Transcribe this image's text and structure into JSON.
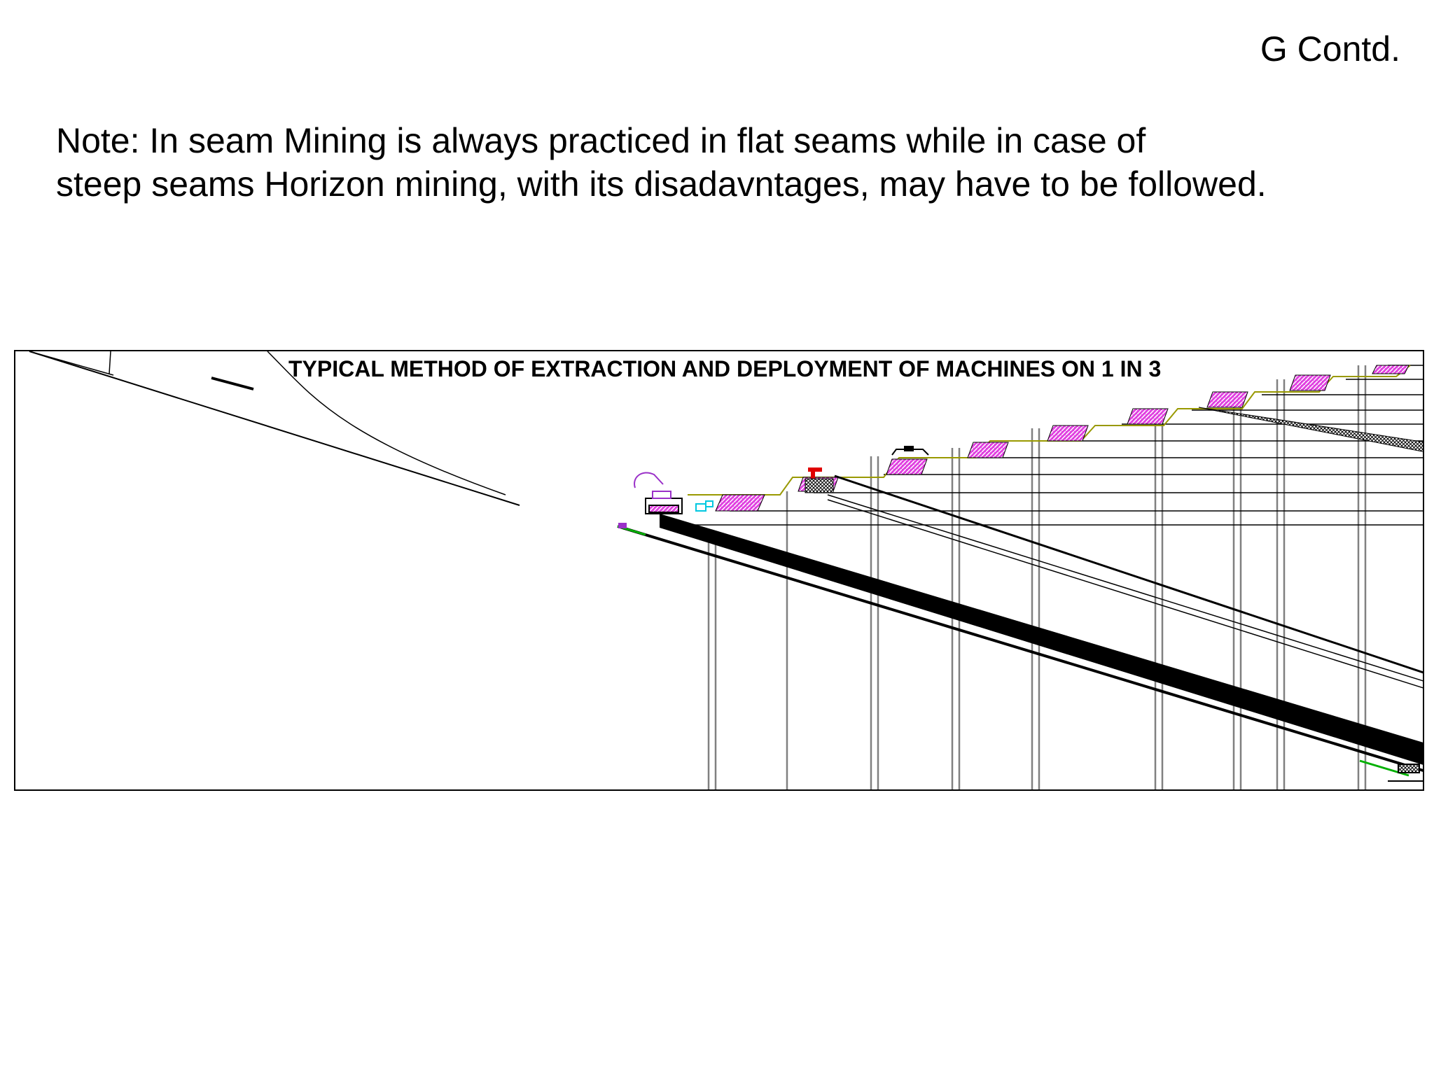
{
  "slide": {
    "heading": "G Contd.",
    "note_lines": [
      "Note: In seam Mining is always practiced in flat seams while in case of",
      "steep seams Horizon mining, with its disadavntages, may have to be followed."
    ]
  },
  "diagram": {
    "title": "TYPICAL METHOD OF EXTRACTION AND DEPLOYMENT OF MACHINES ON 1 IN 3",
    "colors": {
      "line": "#000000",
      "support": "#808080",
      "bench": "#999900",
      "dump": "#e040e0",
      "shovel": "#9a30c8",
      "dozer": "#00c8e0",
      "rig": "#e00000",
      "floor": "#00b000"
    }
  }
}
